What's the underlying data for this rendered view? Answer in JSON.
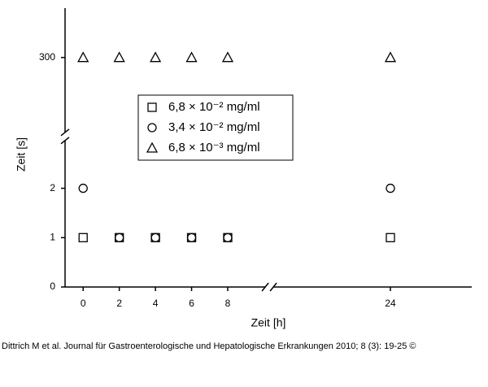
{
  "chart_data": {
    "type": "scatter",
    "x": [
      0,
      2,
      4,
      6,
      8,
      24
    ],
    "series": [
      {
        "name": "6,8 × 10⁻² mg/ml",
        "marker": "square",
        "color": "#000000",
        "values": [
          1,
          1,
          1,
          1,
          1,
          1
        ]
      },
      {
        "name": "3,4 × 10⁻² mg/ml",
        "marker": "circle",
        "color": "#000000",
        "values": [
          2,
          1,
          1,
          1,
          1,
          2
        ]
      },
      {
        "name": "6,8 × 10⁻³ mg/ml",
        "marker": "triangle",
        "color": "#000000",
        "values": [
          300,
          300,
          300,
          300,
          300,
          300
        ]
      }
    ],
    "xlabel": "Zeit [h]",
    "ylabel": "Zeit [s]",
    "xlim": [
      -1,
      28.5
    ],
    "xbreak": [
      10.3,
      17.3
    ],
    "xticks": [
      0,
      2,
      4,
      6,
      8,
      24
    ],
    "ylim": [
      0,
      301
    ],
    "ybreak": [
      3.05,
      298.4
    ],
    "yticks": [
      0,
      1,
      2,
      300
    ],
    "caption": "Dittrich M et al. Journal für Gastroenterologische und Hepatologische Erkrankungen 2010; 8 (3): 19-25 ©"
  }
}
